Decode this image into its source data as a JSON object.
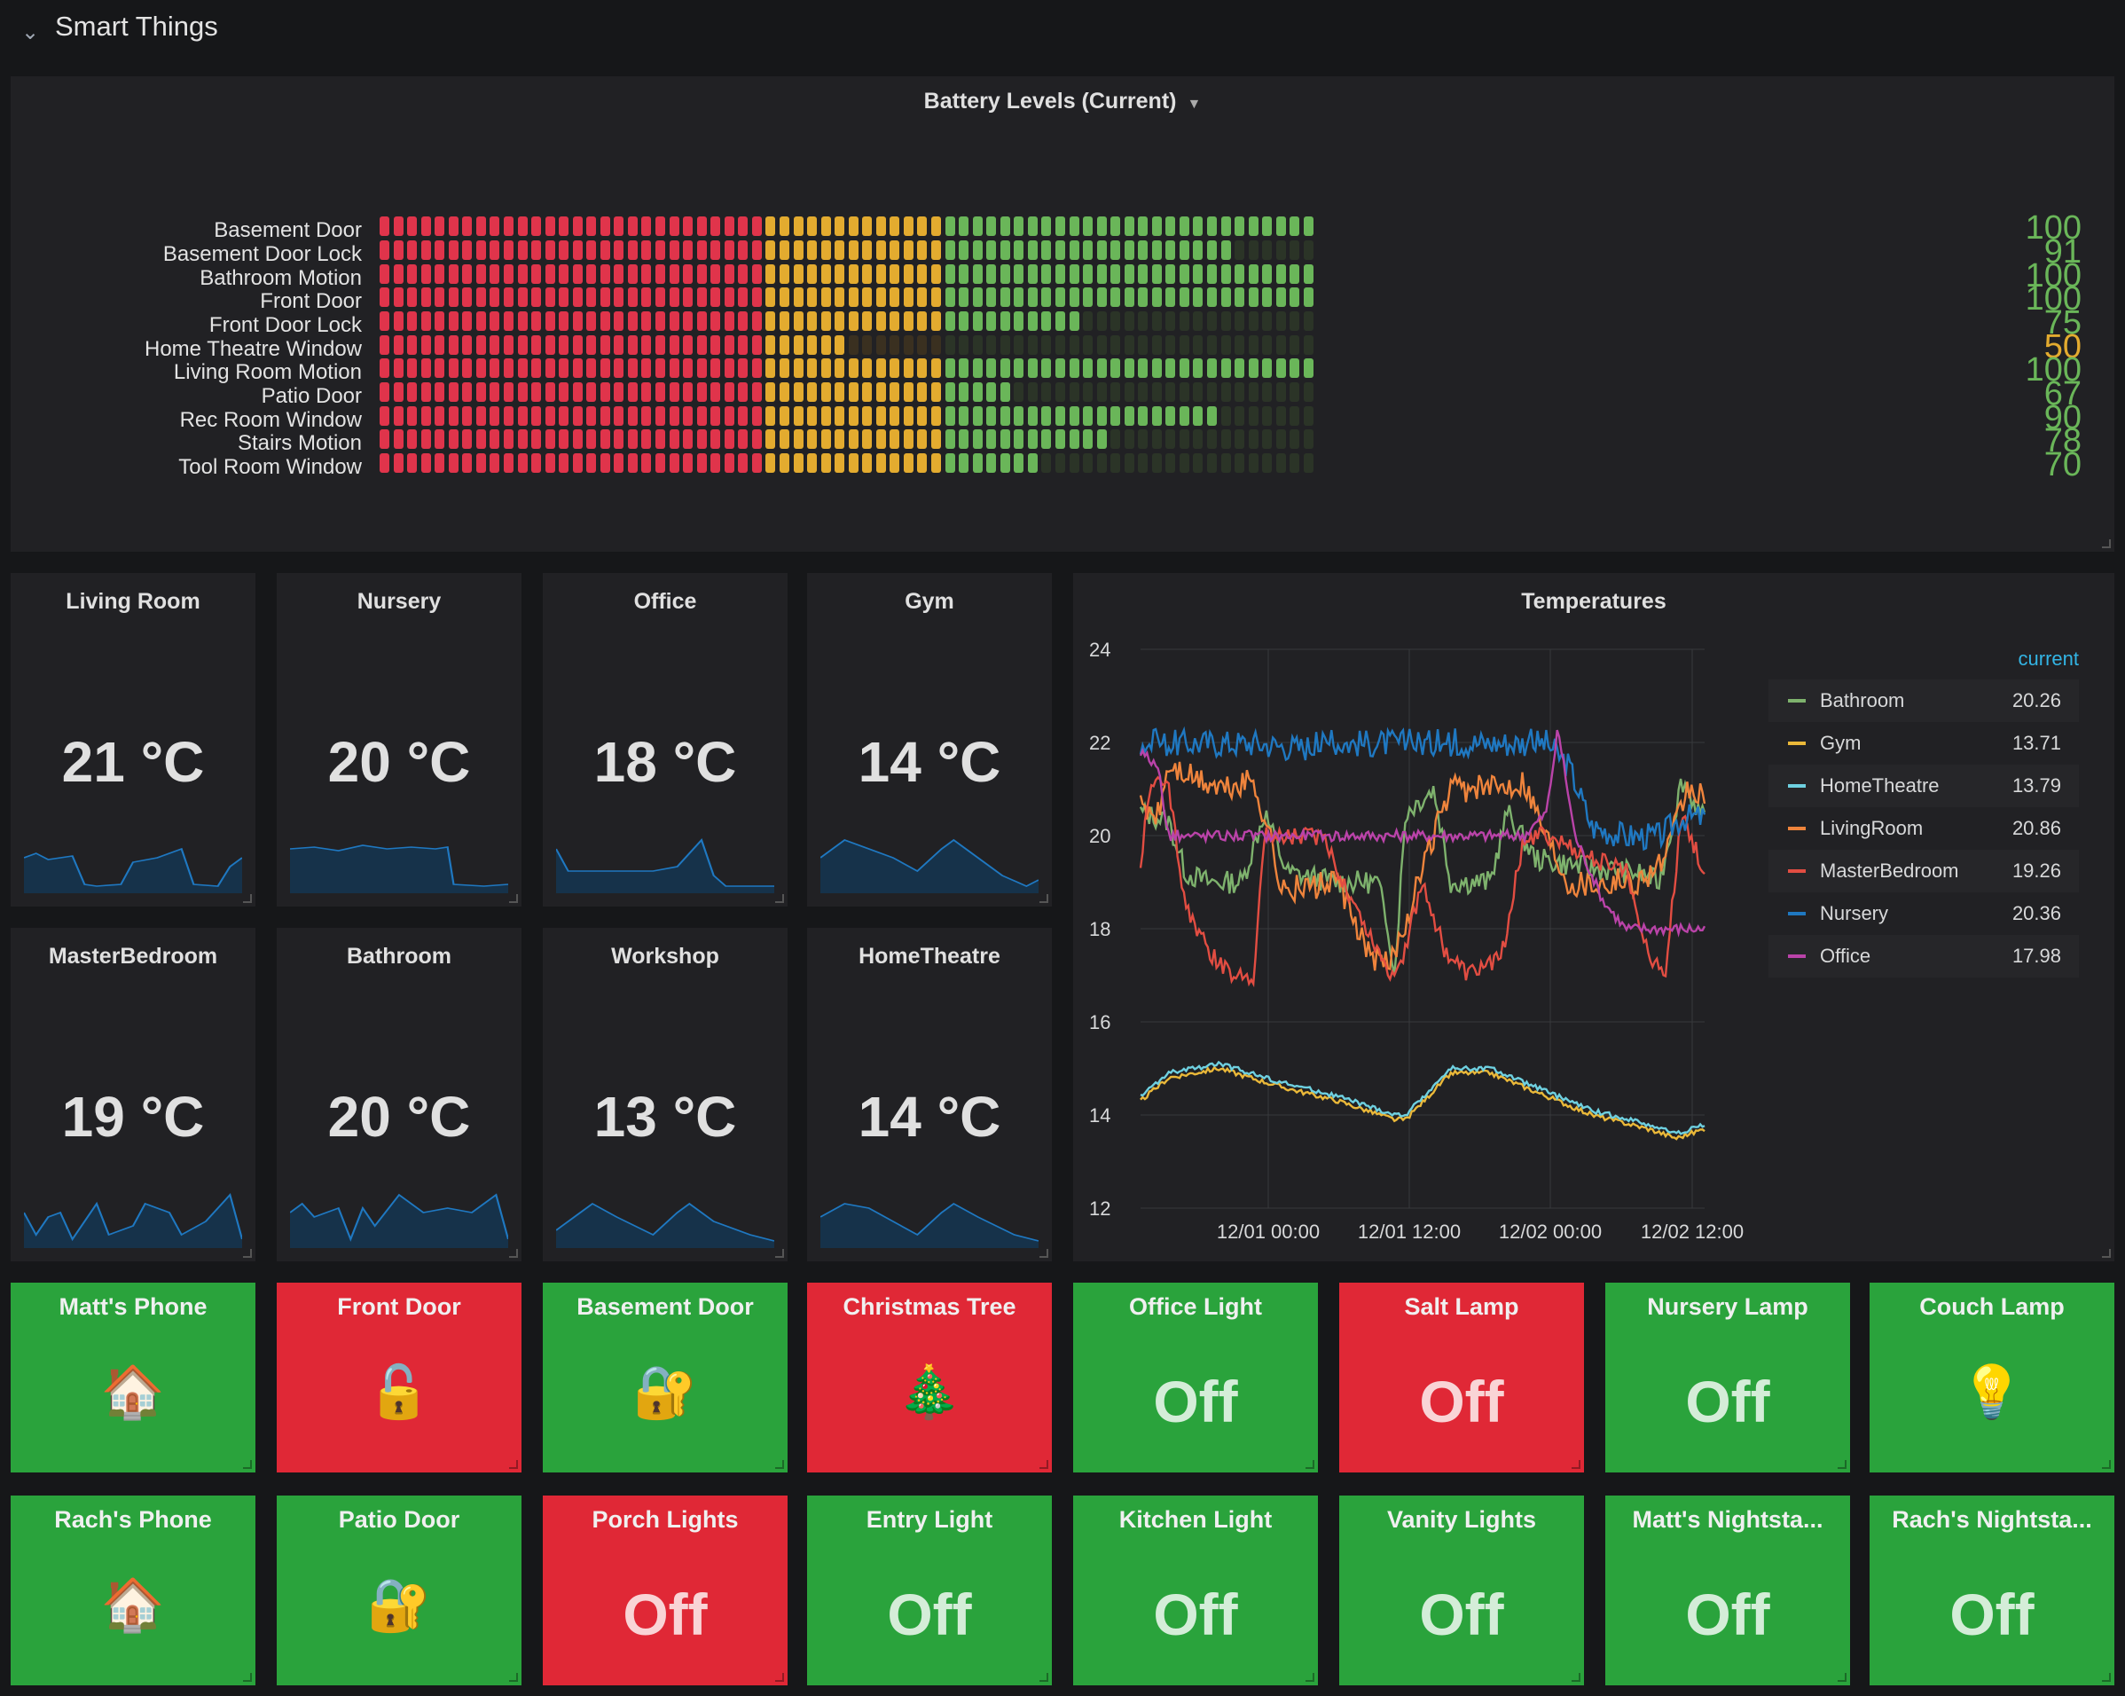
{
  "row": {
    "title": "Smart Things"
  },
  "battery": {
    "title": "Battery Levels (Current)",
    "colors": {
      "red": "#e0344b",
      "yellow": "#e3ab2f",
      "green": "#6ab659",
      "dim": "#2b3427"
    },
    "items": [
      {
        "name": "Basement Door",
        "value": 100,
        "display": "100"
      },
      {
        "name": "Basement Door Lock",
        "value": 91,
        "display": "91"
      },
      {
        "name": "Bathroom Motion",
        "value": 100,
        "display": "100"
      },
      {
        "name": "Front Door",
        "value": 100,
        "display": "100"
      },
      {
        "name": "Front Door Lock",
        "value": 75,
        "display": "75"
      },
      {
        "name": "Home Theatre Window",
        "value": 50,
        "display": "50"
      },
      {
        "name": "Living Room Motion",
        "value": 100,
        "display": "100"
      },
      {
        "name": "Patio Door",
        "value": 67,
        "display": "67"
      },
      {
        "name": "Rec Room Window",
        "value": 90,
        "display": "90"
      },
      {
        "name": "Stairs Motion",
        "value": 78,
        "display": "78"
      },
      {
        "name": "Tool Room Window",
        "value": 70,
        "display": "70"
      }
    ]
  },
  "stats": [
    {
      "title": "Living Room",
      "value": "21 °C"
    },
    {
      "title": "Nursery",
      "value": "20 °C"
    },
    {
      "title": "Office",
      "value": "18 °C"
    },
    {
      "title": "Gym",
      "value": "14 °C"
    },
    {
      "title": "MasterBedroom",
      "value": "19 °C"
    },
    {
      "title": "Bathroom",
      "value": "20 °C"
    },
    {
      "title": "Workshop",
      "value": "13 °C"
    },
    {
      "title": "HomeTheatre",
      "value": "14 °C"
    }
  ],
  "chart_data": {
    "type": "line",
    "title": "Temperatures",
    "ylim": [
      12,
      24
    ],
    "yticks": [
      "24",
      "22",
      "20",
      "18",
      "16",
      "14",
      "12"
    ],
    "xticks": [
      "12/01 00:00",
      "12/01 12:00",
      "12/02 00:00",
      "12/02 12:00"
    ],
    "grid": true,
    "legend_header": "current",
    "legend_placement": "right",
    "series": [
      {
        "name": "Bathroom",
        "color": "#7eb26d",
        "current": "20.26"
      },
      {
        "name": "Gym",
        "color": "#eab839",
        "current": "13.71"
      },
      {
        "name": "HomeTheatre",
        "color": "#6ed0e0",
        "current": "13.79"
      },
      {
        "name": "LivingRoom",
        "color": "#ef843c",
        "current": "20.86"
      },
      {
        "name": "MasterBedroom",
        "color": "#e24d42",
        "current": "19.26"
      },
      {
        "name": "Nursery",
        "color": "#1f78c1",
        "current": "20.36"
      },
      {
        "name": "Office",
        "color": "#ba43a9",
        "current": "17.98"
      }
    ]
  },
  "tiles": [
    {
      "title": "Matt's Phone",
      "kind": "icon",
      "icon": "🏠",
      "icon_name": "house-icon",
      "color": "green"
    },
    {
      "title": "Front Door",
      "kind": "icon",
      "icon": "🔓",
      "icon_name": "unlocked-icon",
      "color": "red"
    },
    {
      "title": "Basement Door",
      "kind": "icon",
      "icon": "🔐",
      "icon_name": "locked-with-key-icon",
      "color": "green"
    },
    {
      "title": "Christmas Tree",
      "kind": "icon",
      "icon": "🎄",
      "icon_name": "christmas-tree-icon",
      "color": "red"
    },
    {
      "title": "Office Light",
      "kind": "text",
      "value": "Off",
      "color": "green"
    },
    {
      "title": "Salt Lamp",
      "kind": "text",
      "value": "Off",
      "color": "red"
    },
    {
      "title": "Nursery Lamp",
      "kind": "text",
      "value": "Off",
      "color": "green"
    },
    {
      "title": "Couch Lamp",
      "kind": "icon",
      "icon": "💡",
      "icon_name": "light-bulb-icon",
      "color": "green"
    },
    {
      "title": "Rach's Phone",
      "kind": "icon",
      "icon": "🏠",
      "icon_name": "house-icon",
      "color": "green"
    },
    {
      "title": "Patio Door",
      "kind": "icon",
      "icon": "🔐",
      "icon_name": "locked-with-key-icon",
      "color": "green"
    },
    {
      "title": "Porch Lights",
      "kind": "text",
      "value": "Off",
      "color": "red"
    },
    {
      "title": "Entry Light",
      "kind": "text",
      "value": "Off",
      "color": "green"
    },
    {
      "title": "Kitchen Light",
      "kind": "text",
      "value": "Off",
      "color": "green"
    },
    {
      "title": "Vanity Lights",
      "kind": "text",
      "value": "Off",
      "color": "green"
    },
    {
      "title": "Matt's Nightsta...",
      "kind": "text",
      "value": "Off",
      "color": "green"
    },
    {
      "title": "Rach's Nightsta...",
      "kind": "text",
      "value": "Off",
      "color": "green"
    }
  ]
}
